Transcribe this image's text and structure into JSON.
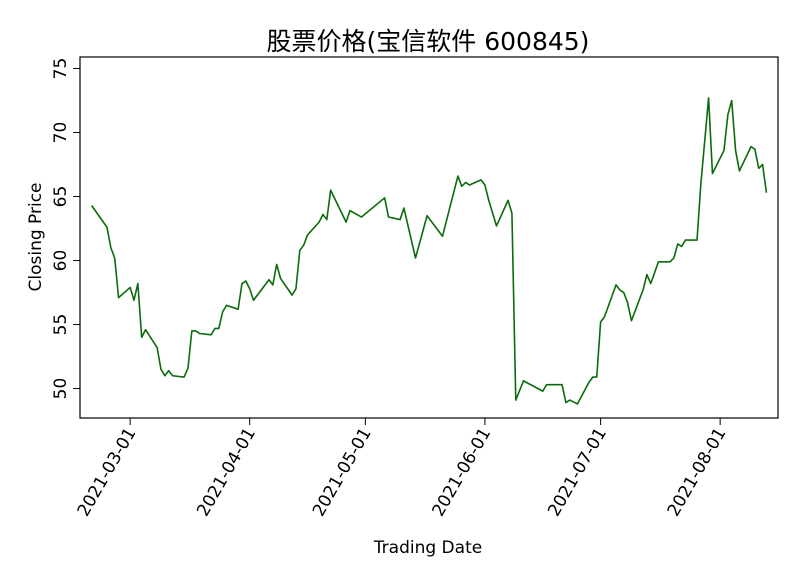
{
  "chart_data": {
    "type": "line",
    "title": "股票价格(宝信软件 600845)",
    "xlabel": "Trading Date",
    "ylabel": "Closing Price",
    "color": "#0b6b0b",
    "x": [
      "2021-02-19",
      "2021-02-23",
      "2021-02-24",
      "2021-02-25",
      "2021-02-26",
      "2021-03-01",
      "2021-03-02",
      "2021-03-03",
      "2021-03-04",
      "2021-03-05",
      "2021-03-08",
      "2021-03-09",
      "2021-03-10",
      "2021-03-11",
      "2021-03-12",
      "2021-03-15",
      "2021-03-16",
      "2021-03-17",
      "2021-03-18",
      "2021-03-19",
      "2021-03-22",
      "2021-03-23",
      "2021-03-24",
      "2021-03-25",
      "2021-03-26",
      "2021-03-29",
      "2021-03-30",
      "2021-03-31",
      "2021-04-01",
      "2021-04-02",
      "2021-04-06",
      "2021-04-07",
      "2021-04-08",
      "2021-04-09",
      "2021-04-12",
      "2021-04-13",
      "2021-04-14",
      "2021-04-15",
      "2021-04-16",
      "2021-04-19",
      "2021-04-20",
      "2021-04-21",
      "2021-04-22",
      "2021-04-26",
      "2021-04-27",
      "2021-04-30",
      "2021-05-06",
      "2021-05-07",
      "2021-05-10",
      "2021-05-11",
      "2021-05-14",
      "2021-05-17",
      "2021-05-20",
      "2021-05-21",
      "2021-05-25",
      "2021-05-26",
      "2021-05-27",
      "2021-05-28",
      "2021-05-31",
      "2021-06-01",
      "2021-06-02",
      "2021-06-04",
      "2021-06-07",
      "2021-06-08",
      "2021-06-09",
      "2021-06-11",
      "2021-06-16",
      "2021-06-17",
      "2021-06-21",
      "2021-06-22",
      "2021-06-23",
      "2021-06-25",
      "2021-06-28",
      "2021-06-29",
      "2021-06-30",
      "2021-07-01",
      "2021-07-02",
      "2021-07-05",
      "2021-07-06",
      "2021-07-07",
      "2021-07-08",
      "2021-07-09",
      "2021-07-12",
      "2021-07-13",
      "2021-07-14",
      "2021-07-16",
      "2021-07-19",
      "2021-07-20",
      "2021-07-21",
      "2021-07-22",
      "2021-07-23",
      "2021-07-26",
      "2021-07-27",
      "2021-07-29",
      "2021-07-30",
      "2021-08-02",
      "2021-08-03",
      "2021-08-04",
      "2021-08-05",
      "2021-08-06",
      "2021-08-09",
      "2021-08-10",
      "2021-08-11",
      "2021-08-12",
      "2021-08-13"
    ],
    "values": [
      64.3,
      62.6,
      61.0,
      60.2,
      57.1,
      57.9,
      56.9,
      58.2,
      54.0,
      54.6,
      53.2,
      51.5,
      51.0,
      51.4,
      51.0,
      50.9,
      51.6,
      54.5,
      54.5,
      54.3,
      54.2,
      54.7,
      54.7,
      56.0,
      56.5,
      56.2,
      58.2,
      58.4,
      57.8,
      56.9,
      58.5,
      58.1,
      59.7,
      58.6,
      57.3,
      57.8,
      60.8,
      61.2,
      62.0,
      63.0,
      63.6,
      63.2,
      65.5,
      63.0,
      63.9,
      63.4,
      64.9,
      63.4,
      63.2,
      64.1,
      60.2,
      63.5,
      62.3,
      61.9,
      66.6,
      65.8,
      66.1,
      65.9,
      66.3,
      65.9,
      64.7,
      62.7,
      64.7,
      63.7,
      49.1,
      50.6,
      49.8,
      50.3,
      50.3,
      48.9,
      49.1,
      48.8,
      50.5,
      50.9,
      50.9,
      55.2,
      55.6,
      58.1,
      57.7,
      57.5,
      56.7,
      55.3,
      57.7,
      58.9,
      58.2,
      59.9,
      59.9,
      60.2,
      61.3,
      61.1,
      61.6,
      61.6,
      66.0,
      72.7,
      66.8,
      68.6,
      71.4,
      72.5,
      68.6,
      67.0,
      68.9,
      68.7,
      67.2,
      67.5,
      65.3
    ],
    "xlim": [
      "2021-02-16",
      "2021-08-16"
    ],
    "xticks": [
      "2021-03-01",
      "2021-04-01",
      "2021-05-01",
      "2021-06-01",
      "2021-07-01",
      "2021-08-01"
    ],
    "ylim": [
      47.7,
      75.9
    ],
    "yticks": [
      50,
      55,
      60,
      65,
      70,
      75
    ]
  }
}
